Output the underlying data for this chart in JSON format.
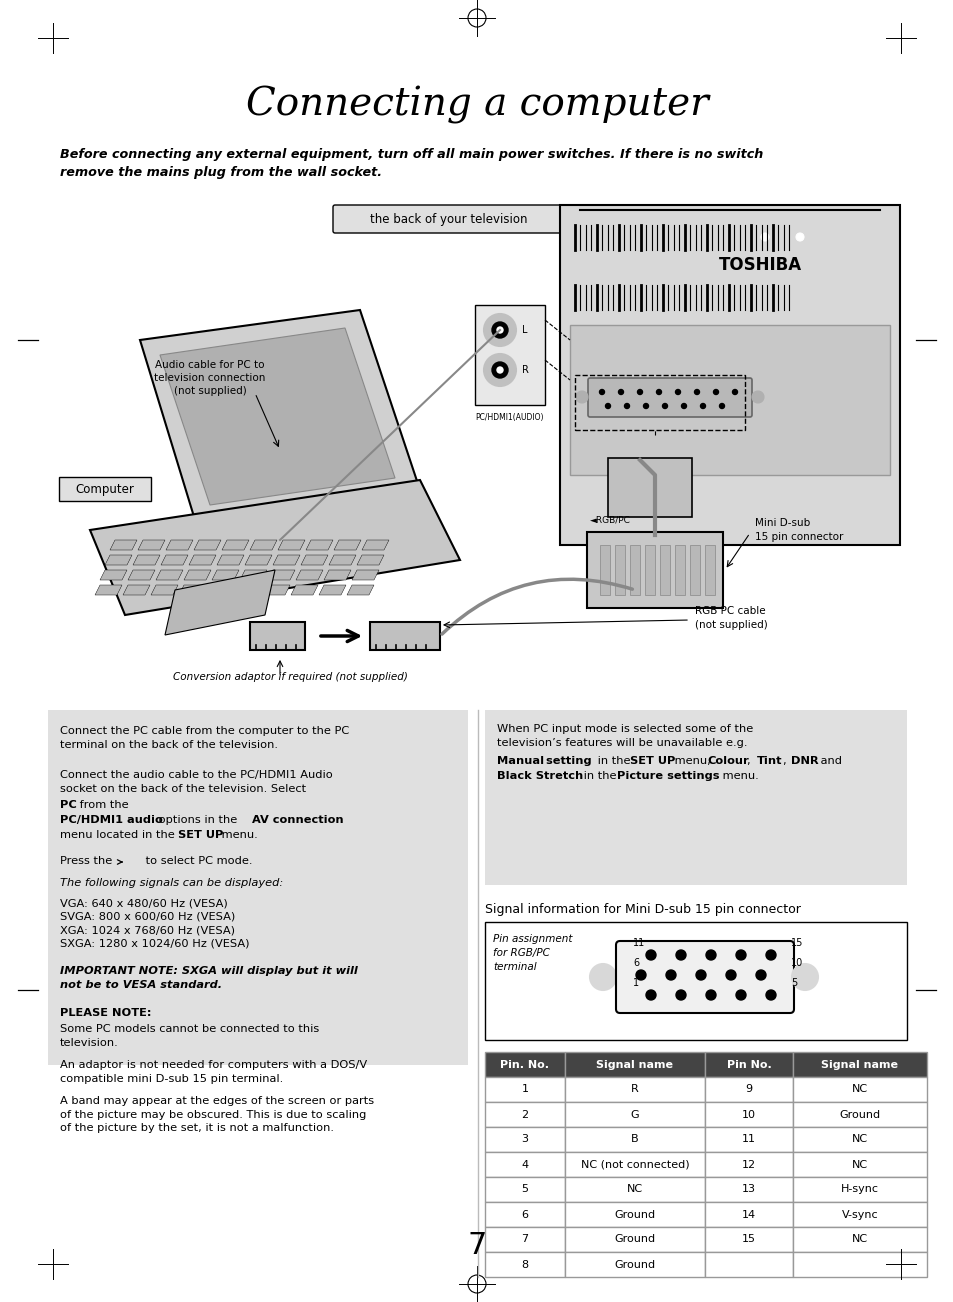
{
  "title": "Connecting a computer",
  "warning_line1": "Before connecting any external equipment, turn off all main power switches. If there is no switch",
  "warning_line2": "remove the mains plug from the wall socket.",
  "diagram_label_tv_back": "the back of your television",
  "diagram_label_computer": "Computer",
  "diagram_label_audio": "Audio cable for PC to\ntelevision connection\n(not supplied)",
  "diagram_label_minidsub": "Mini D-sub\n15 pin connector",
  "diagram_label_rgb": "RGB PC cable\n(not supplied)",
  "diagram_label_conversion": "Conversion adaptor if required (not supplied)",
  "left_para1": "Connect the PC cable from the computer to the PC\nterminal on the back of the television.",
  "left_para2a": "Connect the audio cable to the PC/HDMI1 Audio\nsocket on the back of the television. Select ",
  "left_para2b": "PC",
  "left_para2c": " from the",
  "left_para2d": "PC/HDMI1 audio",
  "left_para2e": " options in the ",
  "left_para2f": "AV connection",
  "left_para2g": "menu located in the ",
  "left_para2h": "SET UP",
  "left_para2i": " menu.",
  "left_para3a": "Press the ",
  "left_para3b": " to select PC mode.",
  "left_para4": "The following signals can be displayed:",
  "left_para5": "VGA: 640 x 480/60 Hz (VESA)\nSVGA: 800 x 600/60 Hz (VESA)\nXGA: 1024 x 768/60 Hz (VESA)\nSXGA: 1280 x 1024/60 Hz (VESA)",
  "left_para6": "IMPORTANT NOTE: SXGA will display but it will\nnot be to VESA standard.",
  "left_para7_head": "PLEASE NOTE:",
  "left_para7a": "Some PC models cannot be connected to this\ntelevision.",
  "left_para7b": "An adaptor is not needed for computers with a DOS/V\ncompatible mini D-sub 15 pin terminal.",
  "left_para7c": "A band may appear at the edges of the screen or parts\nof the picture may be obscured. This is due to scaling\nof the picture by the set, it is not a malfunction.",
  "right_para1a": "When PC input mode is selected some of the\ntelevision’s features will be unavailable e.g. ",
  "right_para1b": "Manual\nsetting",
  "right_para1c": " in the ",
  "right_para1d": "SET UP",
  "right_para1e": " menu, ",
  "right_para1f": "Colour",
  "right_para1g": ", ",
  "right_para1h": "Tint",
  "right_para1i": ", ",
  "right_para1j": "DNR",
  "right_para1k": " and\n",
  "right_para1l": "Black Stretch",
  "right_para1m": " in the ",
  "right_para1n": "Picture settings",
  "right_para1o": " menu.",
  "signal_info_title": "Signal information for Mini D-sub 15 pin connector",
  "pin_label": "Pin assignment\nfor RGB/PC\nterminal",
  "table_headers": [
    "Pin. No.",
    "Signal name",
    "Pin No.",
    "Signal name"
  ],
  "table_rows": [
    [
      "1",
      "R",
      "9",
      "NC"
    ],
    [
      "2",
      "G",
      "10",
      "Ground"
    ],
    [
      "3",
      "B",
      "11",
      "NC"
    ],
    [
      "4",
      "NC (not connected)",
      "12",
      "NC"
    ],
    [
      "5",
      "NC",
      "13",
      "H-sync"
    ],
    [
      "6",
      "Ground",
      "14",
      "V-sync"
    ],
    [
      "7",
      "Ground",
      "15",
      "NC"
    ],
    [
      "8",
      "Ground",
      "",
      ""
    ]
  ],
  "page_number": "7",
  "bg_color": "#ffffff",
  "box_bg": "#e0e0e0",
  "table_header_bg": "#444444",
  "table_header_fg": "#ffffff",
  "table_border": "#999999"
}
